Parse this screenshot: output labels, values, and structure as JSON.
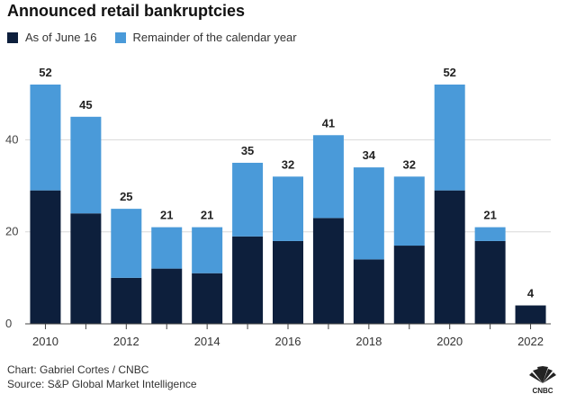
{
  "colors": {
    "as_of": "#0d1f3c",
    "remainder": "#4a9ad9",
    "grid": "#d9d9d9"
  },
  "logo": {
    "name": "cnbc-peacock-logo",
    "text": "CNBC"
  },
  "footer": {
    "credit": "Chart: Gabriel Cortes / CNBC",
    "source": "Source: S&P Global Market Intelligence"
  },
  "chart_data": {
    "type": "bar",
    "stacked": true,
    "title": "Announced retail bankruptcies",
    "categories": [
      "2010",
      "2011",
      "2012",
      "2013",
      "2014",
      "2015",
      "2016",
      "2017",
      "2018",
      "2019",
      "2020",
      "2021",
      "2022"
    ],
    "x_tick_labels": [
      "2010",
      "",
      "2012",
      "",
      "2014",
      "",
      "2016",
      "",
      "2018",
      "",
      "2020",
      "",
      "2022"
    ],
    "series": [
      {
        "name": "As of June 16",
        "values": [
          29,
          24,
          10,
          12,
          11,
          19,
          18,
          23,
          14,
          17,
          29,
          18,
          4
        ]
      },
      {
        "name": "Remainder of the calendar year",
        "values": [
          23,
          21,
          15,
          9,
          10,
          16,
          14,
          18,
          20,
          15,
          23,
          3,
          0
        ]
      }
    ],
    "totals": [
      52,
      45,
      25,
      21,
      21,
      35,
      32,
      41,
      34,
      32,
      52,
      21,
      4
    ],
    "ylim": [
      0,
      52
    ],
    "y_ticks": [
      0,
      20,
      40
    ],
    "grid": true,
    "legend": "top-left"
  }
}
